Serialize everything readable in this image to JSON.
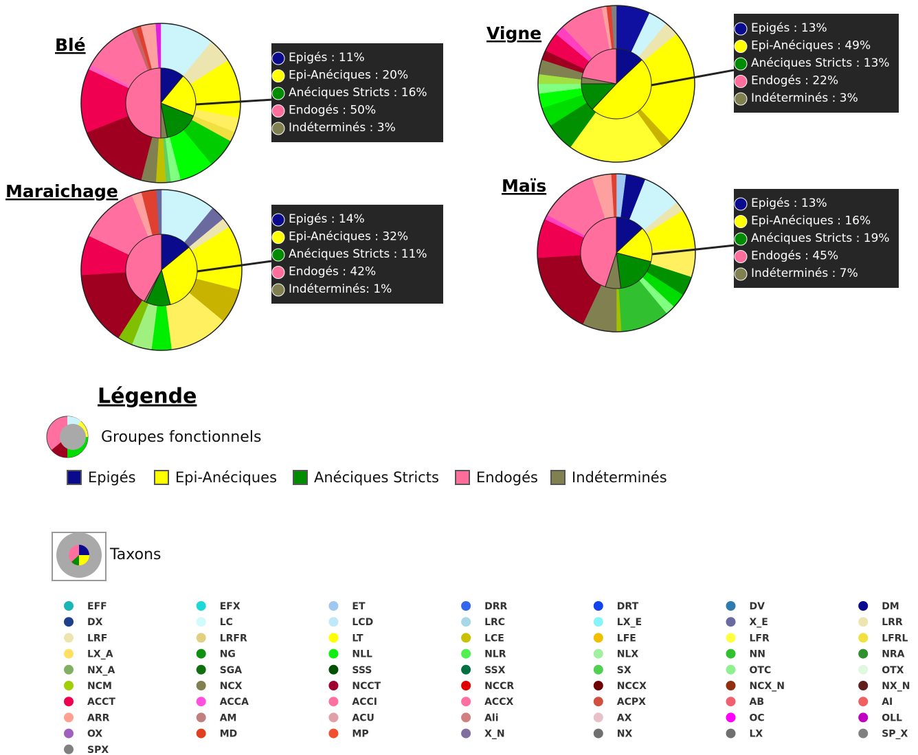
{
  "chart_data": [
    {
      "type": "sunburst",
      "title": "Blé",
      "values": [
        11,
        20,
        16,
        50,
        3
      ],
      "value_labels": [
        "Epigés : 11%",
        "Epi-Anéciques : 20%",
        "Anéciques Stricts : 16%",
        "Endogés : 50%",
        "Indéterminés : 3%"
      ],
      "colors": [
        "#0a0a8c",
        "#ffff00",
        "#008c00",
        "#ff6e9c",
        "#808050"
      ],
      "outer": {
        "values": [
          11,
          5,
          12,
          3,
          2,
          6,
          7,
          2,
          1,
          2,
          3,
          15,
          13,
          1,
          11,
          1,
          1,
          3,
          1
        ],
        "colors": [
          "#ccf5fb",
          "#ede5b0",
          "#ffff00",
          "#ffef60",
          "#f0e040",
          "#00cc00",
          "#00ff00",
          "#80ff80",
          "#60d060",
          "#c0c000",
          "#808050",
          "#a00020",
          "#f00050",
          "#ff60c0",
          "#ff70a0",
          "#c86464",
          "#e04030",
          "#ffa0a0",
          "#e020e0"
        ]
      }
    },
    {
      "type": "sunburst",
      "title": "Vigne",
      "values": [
        13,
        49,
        13,
        22,
        3
      ],
      "value_labels": [
        "Epigés : 13%",
        "Epi-Anéciques : 49%",
        "Anéciques Stricts : 13%",
        "Endogés : 22%",
        "Indéterminés : 3%"
      ],
      "colors": [
        "#0a0a8c",
        "#ffff00",
        "#008c00",
        "#ff6e9c",
        "#808050"
      ],
      "outer": {
        "values": [
          7,
          4,
          3,
          24,
          2,
          20,
          6,
          4,
          3,
          2,
          2,
          3,
          2,
          4,
          2,
          9,
          1,
          1,
          1
        ],
        "colors": [
          "#1010a0",
          "#ccf5fb",
          "#ede5b0",
          "#ffff00",
          "#c8b400",
          "#ffff30",
          "#009000",
          "#00dd00",
          "#00ff00",
          "#80ff80",
          "#a0e040",
          "#808050",
          "#a00020",
          "#f00050",
          "#ff40c0",
          "#ff70a0",
          "#ffa0a0",
          "#e04030",
          "#808080"
        ]
      }
    },
    {
      "type": "sunburst",
      "title": "Maraichage",
      "values": [
        14,
        32,
        11,
        42,
        1
      ],
      "value_labels": [
        "Epigés : 14%",
        "Epi-Anéciques : 32%",
        "Anéciques Stricts : 11%",
        "Endogés : 42%",
        "Indéterminés: 1%"
      ],
      "colors": [
        "#0a0a8c",
        "#ffff00",
        "#008c00",
        "#ff6e9c",
        "#808050"
      ],
      "outer": {
        "values": [
          11,
          3,
          2,
          13,
          7,
          12,
          4,
          4,
          3,
          15,
          8,
          12,
          2,
          3,
          1
        ],
        "colors": [
          "#ccf5fb",
          "#6a6aa0",
          "#ede5b0",
          "#ffff00",
          "#c8b400",
          "#fff060",
          "#00ee00",
          "#a0f080",
          "#80c000",
          "#a00020",
          "#f00050",
          "#ff70a0",
          "#ffa0a0",
          "#e04030",
          "#6a6aa0"
        ]
      }
    },
    {
      "type": "sunburst",
      "title": "Maïs",
      "values": [
        13,
        16,
        19,
        45,
        7
      ],
      "value_labels": [
        "Epigés : 13%",
        "Epi-Anéciques : 16%",
        "Anéciques Stricts : 19%",
        "Endogés : 45%",
        "Indéterminés : 7%"
      ],
      "colors": [
        "#0a0a8c",
        "#ffff00",
        "#008c00",
        "#ff6e9c",
        "#808050"
      ],
      "outer": {
        "values": [
          2,
          4,
          8,
          2,
          8,
          6,
          4,
          3,
          2,
          10,
          1,
          7,
          17,
          8,
          1,
          12,
          4,
          1
        ],
        "colors": [
          "#9ec8f0",
          "#0a0a90",
          "#ccf5fb",
          "#ede5b0",
          "#ffff00",
          "#fff060",
          "#009000",
          "#00dd00",
          "#80ff80",
          "#30c030",
          "#a0c000",
          "#808050",
          "#a00020",
          "#f00050",
          "#ff40c0",
          "#ff70a0",
          "#ffa0a0",
          "#e04030"
        ]
      }
    }
  ],
  "legend": {
    "title": "Légende",
    "groups_title": "Groupes fonctionnels",
    "groups": [
      {
        "name": "Epigés",
        "color": "#0a0a8c"
      },
      {
        "name": "Epi-Anéciques",
        "color": "#ffff00"
      },
      {
        "name": "Anéciques Stricts",
        "color": "#008c00"
      },
      {
        "name": "Endogés",
        "color": "#ff6e9c"
      },
      {
        "name": "Indéterminés",
        "color": "#808050"
      }
    ],
    "taxons_title": "Taxons",
    "taxons": [
      {
        "name": "EFF",
        "color": "#1ab5b5"
      },
      {
        "name": "EFX",
        "color": "#1ed8d8"
      },
      {
        "name": "ET",
        "color": "#9ec8f0"
      },
      {
        "name": "DRR",
        "color": "#3366ee"
      },
      {
        "name": "DRT",
        "color": "#1144ee"
      },
      {
        "name": "DV",
        "color": "#2e7bb0"
      },
      {
        "name": "DM",
        "color": "#0a0a90"
      },
      {
        "name": "DX",
        "color": "#1f3f8a"
      },
      {
        "name": "LC",
        "color": "#d0fafc"
      },
      {
        "name": "LCD",
        "color": "#c0e8f8"
      },
      {
        "name": "LRC",
        "color": "#a8d8e8"
      },
      {
        "name": "LX_E",
        "color": "#88f4f8"
      },
      {
        "name": "X_E",
        "color": "#6a6aa0"
      },
      {
        "name": "LRR",
        "color": "#ede5b0"
      },
      {
        "name": "LRF",
        "color": "#ede5b0"
      },
      {
        "name": "LRFR",
        "color": "#e0d080"
      },
      {
        "name": "LT",
        "color": "#ffff00"
      },
      {
        "name": "LCE",
        "color": "#c8c000"
      },
      {
        "name": "LFE",
        "color": "#f0c000"
      },
      {
        "name": "LFR",
        "color": "#ffff40"
      },
      {
        "name": "LFRL",
        "color": "#f0e040"
      },
      {
        "name": "LX_A",
        "color": "#ffe060"
      },
      {
        "name": "NG",
        "color": "#109010"
      },
      {
        "name": "NLL",
        "color": "#10ee10"
      },
      {
        "name": "NLR",
        "color": "#50f050"
      },
      {
        "name": "NLX",
        "color": "#a0f0a0"
      },
      {
        "name": "NN",
        "color": "#30c030"
      },
      {
        "name": "NRA",
        "color": "#309030"
      },
      {
        "name": "NX_A",
        "color": "#80b060"
      },
      {
        "name": "SGA",
        "color": "#107010"
      },
      {
        "name": "SSS",
        "color": "#005000"
      },
      {
        "name": "SSX",
        "color": "#007040"
      },
      {
        "name": "SX",
        "color": "#50d050"
      },
      {
        "name": "OTC",
        "color": "#90f090"
      },
      {
        "name": "OTX",
        "color": "#e0f8e0"
      },
      {
        "name": "NCM",
        "color": "#a0d000"
      },
      {
        "name": "NCX",
        "color": "#808050"
      },
      {
        "name": "NCCT",
        "color": "#a00030"
      },
      {
        "name": "NCCR",
        "color": "#e00000"
      },
      {
        "name": "NCCX",
        "color": "#700000"
      },
      {
        "name": "NCX_N",
        "color": "#903010"
      },
      {
        "name": "NX_N",
        "color": "#602020"
      },
      {
        "name": "ACCT",
        "color": "#f00050"
      },
      {
        "name": "ACCA",
        "color": "#ff50e0"
      },
      {
        "name": "ACCI",
        "color": "#ff70a0"
      },
      {
        "name": "ACCX",
        "color": "#ff70a0"
      },
      {
        "name": "ACPX",
        "color": "#d05040"
      },
      {
        "name": "AB",
        "color": "#f06070"
      },
      {
        "name": "AI",
        "color": "#f06060"
      },
      {
        "name": "ARR",
        "color": "#ffa090"
      },
      {
        "name": "AM",
        "color": "#c08080"
      },
      {
        "name": "ACU",
        "color": "#e0a0a8"
      },
      {
        "name": "Ali",
        "color": "#d08080"
      },
      {
        "name": "AX",
        "color": "#e8c0c8"
      },
      {
        "name": "OC",
        "color": "#ff00ff"
      },
      {
        "name": "OLL",
        "color": "#c000c0"
      },
      {
        "name": "OX",
        "color": "#a060c0"
      },
      {
        "name": "MD",
        "color": "#e04020"
      },
      {
        "name": "MP",
        "color": "#f05030"
      },
      {
        "name": "X_N",
        "color": "#8070a0"
      },
      {
        "name": "NX",
        "color": "#707070"
      },
      {
        "name": "LX",
        "color": "#707070"
      },
      {
        "name": "SP_X",
        "color": "#808080"
      },
      {
        "name": "SPX",
        "color": "#808080"
      }
    ]
  }
}
